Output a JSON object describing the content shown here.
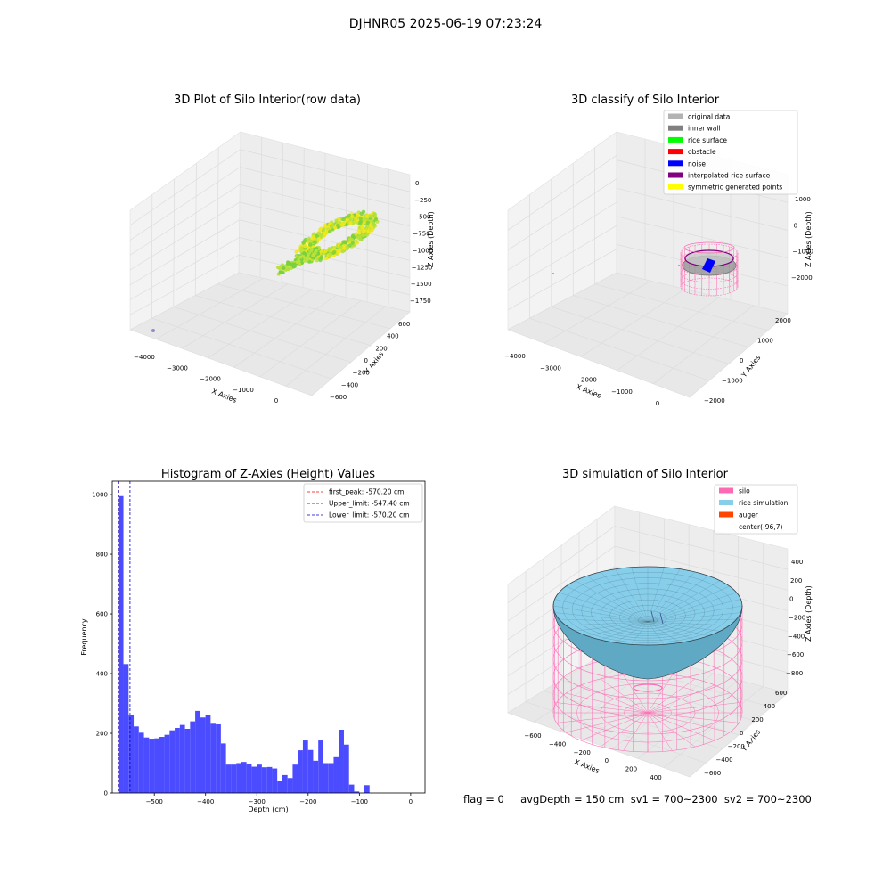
{
  "figure": {
    "title": "DJHNR05 2025-06-19 07:23:24"
  },
  "colors": {
    "grey_panel": "#f2f2f2",
    "grid": "#dcdcdc",
    "hist_bar": "#4b4bff",
    "peak_line": "#ff0000",
    "limit_line": "#0000cc",
    "silo": "#ff69b4",
    "rice": "#87ceeb",
    "auger": "#ff4500",
    "green1": "#7ad13e",
    "green2": "#b9e23a",
    "yellow": "#f2e716"
  },
  "chart_data": [
    {
      "type": "scatter",
      "title": "3D Plot of Silo Interior(row data)",
      "xlabel": "X Axies",
      "ylabel": "Y Axies",
      "zlabel": "Z Axies (Depth)",
      "x_ticks": [
        "−4000",
        "−3000",
        "−2000",
        "−1000",
        "0"
      ],
      "y_ticks": [
        "−600",
        "−400",
        "−200",
        "0",
        "200",
        "400",
        "600"
      ],
      "z_ticks": [
        "0",
        "−250",
        "−500",
        "−750",
        "−1000",
        "−1250",
        "−1500",
        "−1750"
      ]
    },
    {
      "type": "scatter",
      "title": "3D classify of Silo Interior",
      "xlabel": "X Axies",
      "ylabel": "Y Axies",
      "zlabel": "Z Axies (Depth)",
      "x_ticks": [
        "−4000",
        "−3000",
        "−2000",
        "−1000",
        "0"
      ],
      "y_ticks": [
        "−2000",
        "−1000",
        "0",
        "1000",
        "2000"
      ],
      "z_ticks": [
        "1000",
        "0",
        "−1000",
        "−2000"
      ],
      "legend": {
        "placement": "top-right",
        "entries": [
          {
            "label": "original data",
            "color": "#b3b3b3"
          },
          {
            "label": "inner wall",
            "color": "#808080"
          },
          {
            "label": "rice surface",
            "color": "#00ff00"
          },
          {
            "label": "obstacle",
            "color": "#ff0000"
          },
          {
            "label": "noise",
            "color": "#0000ff"
          },
          {
            "label": "interpolated rice surface",
            "color": "#800080"
          },
          {
            "label": "symmetric generated points",
            "color": "#ffff00"
          }
        ]
      }
    },
    {
      "type": "bar",
      "title": "Histogram of Z-Axies (Height) Values",
      "xlabel": "Depth (cm)",
      "ylabel": "Frequency",
      "xlim": [
        -582,
        28
      ],
      "ylim": [
        0,
        1045
      ],
      "x_ticks": [
        -500,
        -400,
        -300,
        -200,
        -100,
        0
      ],
      "x_tick_labels": [
        "−500",
        "−400",
        "−300",
        "−200",
        "−100",
        "0"
      ],
      "y_ticks": [
        0,
        200,
        400,
        600,
        800,
        1000
      ],
      "bin_start": -570.2,
      "bin_width": 10.0,
      "values": [
        995,
        432,
        262,
        223,
        202,
        186,
        182,
        183,
        188,
        195,
        210,
        218,
        228,
        215,
        240,
        275,
        253,
        262,
        232,
        230,
        166,
        95,
        95,
        100,
        104,
        96,
        88,
        95,
        86,
        87,
        82,
        40,
        60,
        50,
        95,
        143,
        176,
        144,
        108,
        176,
        100,
        100,
        120,
        212,
        162,
        28,
        5,
        0,
        26
      ],
      "vlines": [
        {
          "label": "first_peak: -570.20 cm",
          "x": -570.2,
          "color": "#ff0000"
        },
        {
          "label": "Upper_limit: -547.40 cm",
          "x": -547.4,
          "color": "#0000cc"
        },
        {
          "label": "Lower_limit: -570.20 cm",
          "x": -570.2,
          "color": "#0000cc"
        }
      ],
      "legend": {
        "placement": "top-right"
      }
    },
    {
      "type": "surface",
      "title": "3D simulation of Silo Interior",
      "xlabel": "X Axies",
      "ylabel": "Y Axies",
      "zlabel": "Z Axies (Depth)",
      "x_ticks": [
        "−600",
        "−400",
        "−200",
        "0",
        "200",
        "400"
      ],
      "y_ticks": [
        "−600",
        "−400",
        "−200",
        "0",
        "200",
        "400",
        "600"
      ],
      "z_ticks": [
        "400",
        "200",
        "0",
        "−200",
        "−400",
        "−600",
        "−800"
      ],
      "legend": {
        "placement": "top-right",
        "entries": [
          {
            "label": "silo",
            "color": "#ff69b4"
          },
          {
            "label": "rice simulation",
            "color": "#87ceeb"
          },
          {
            "label": "auger",
            "color": "#ff4500"
          },
          {
            "label": "center(-96,7)",
            "color": ""
          }
        ]
      }
    }
  ],
  "footer": {
    "text": "flag = 0     avgDepth = 150 cm  sv1 = 700~2300  sv2 = 700~2300"
  }
}
